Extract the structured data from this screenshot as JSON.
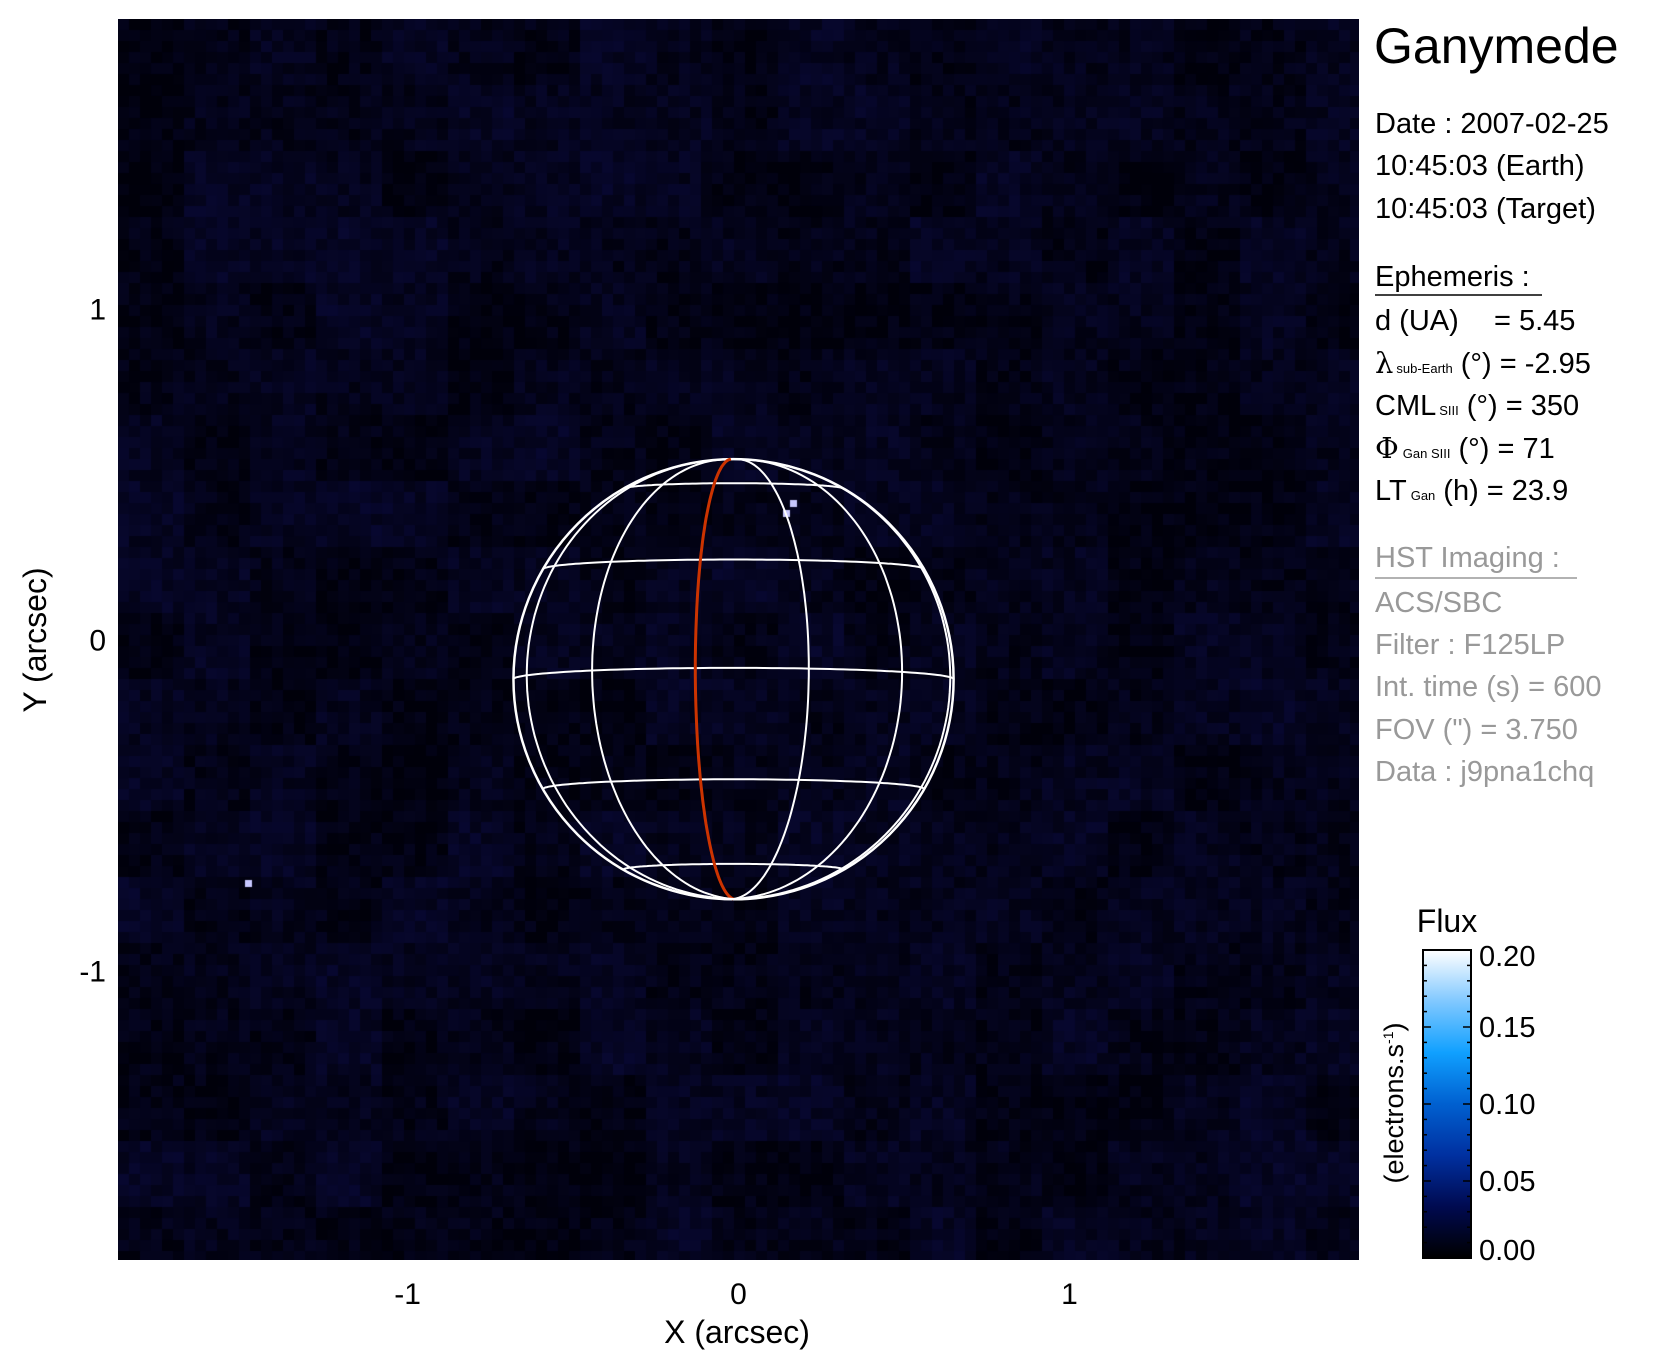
{
  "chart_data": {
    "type": "heatmap",
    "title": "Ganymede",
    "xlabel": "X (arcsec)",
    "ylabel": "Y (arcsec)",
    "xlim": [
      -1.875,
      1.875
    ],
    "ylim": [
      -1.875,
      1.875
    ],
    "xticks": [
      {
        "v": -1,
        "label": "-1"
      },
      {
        "v": 0,
        "label": "0"
      },
      {
        "v": 1,
        "label": "1"
      }
    ],
    "yticks": [
      {
        "v": 1,
        "label": "1"
      },
      {
        "v": 0,
        "label": "0"
      },
      {
        "v": -1,
        "label": "-1"
      }
    ],
    "grid": false,
    "globe": {
      "radius_arcsec": 0.665,
      "sub_earth_lat_deg": -2.95,
      "cml_deg": 350,
      "grid_step_deg": 30,
      "grid_color": "#ffffff",
      "prime_meridian_color": "#cc3300"
    },
    "colorbar": {
      "title": "Flux",
      "label": "(electrons.s",
      "label_sup": "-1",
      "label_end": ")",
      "range": [
        0,
        0.2
      ],
      "ticks": [
        {
          "v": 0.2,
          "label": "0.20"
        },
        {
          "v": 0.15,
          "label": "0.15"
        },
        {
          "v": 0.1,
          "label": "0.10"
        },
        {
          "v": 0.05,
          "label": "0.05"
        },
        {
          "v": 0.0,
          "label": "0.00"
        }
      ],
      "colors": [
        "#000000",
        "#000a50",
        "#0030a0",
        "#0060d0",
        "#10a0ff",
        "#80c8ff",
        "#ffffff"
      ]
    }
  },
  "info": {
    "date": "Date : 2007-02-25",
    "time_earth": "10:45:03 (Earth)",
    "time_target": "10:45:03 (Target)",
    "ephemeris_header": "Ephemeris :",
    "d": {
      "label": "d (UA)",
      "value": "= 5.45"
    },
    "lambda": {
      "sym": "λ",
      "sub": "sub-Earth",
      "rest": "(°) = -2.95"
    },
    "cml": {
      "sym": "CML",
      "sub": "SIII",
      "rest": "(°) = 350"
    },
    "phi": {
      "sym": "Φ",
      "sub": "Gan SIII",
      "rest": "(°) = 71"
    },
    "lt": {
      "sym": "LT",
      "sub": "Gan",
      "rest": "(h) = 23.9"
    },
    "hst_header": "HST Imaging :",
    "instrument": "ACS/SBC",
    "filter": "Filter : F125LP",
    "int_time": "Int. time (s) = 600",
    "fov": "FOV (\") = 3.750",
    "data_id": "Data : j9pna1chq"
  }
}
